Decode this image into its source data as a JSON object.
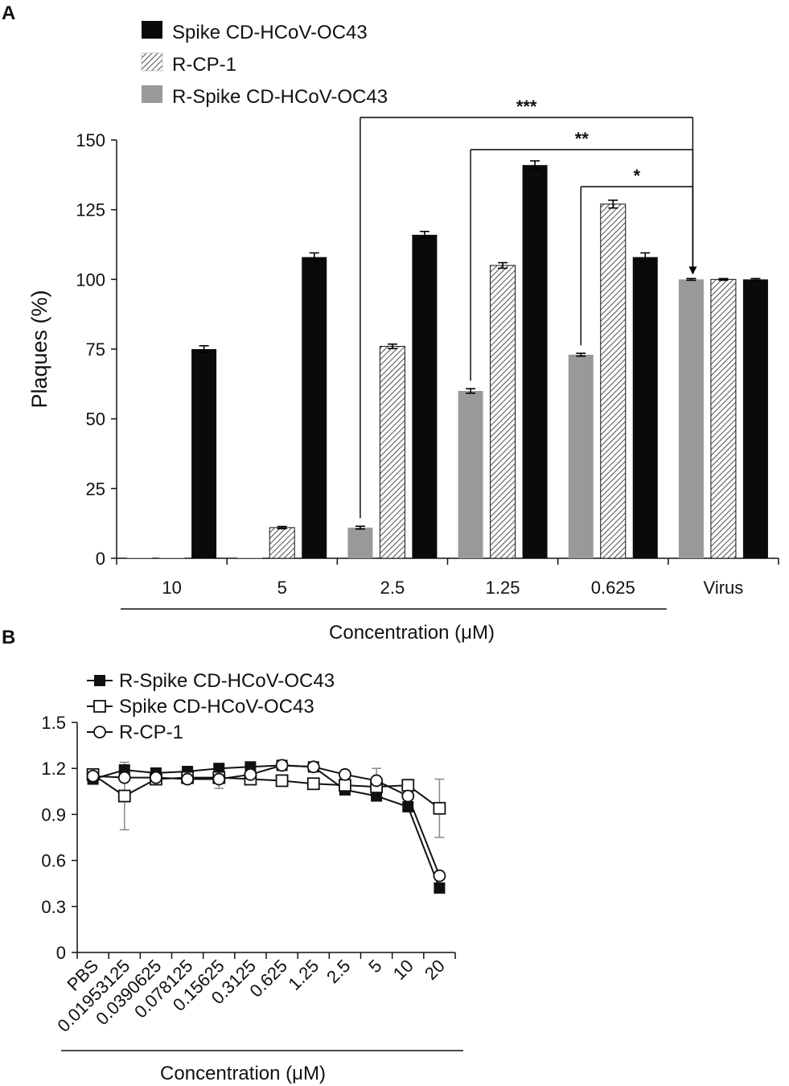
{
  "figure": {
    "panel_a_letter": "A",
    "panel_b_letter": "B"
  },
  "chart_data": [
    {
      "type": "bar",
      "panel": "A",
      "ylabel": "Plaques (%)",
      "xlabel": "Concentration (μM)",
      "ylim": [
        0,
        150
      ],
      "yticks": [
        0,
        25,
        50,
        75,
        100,
        125,
        150
      ],
      "categories": [
        "10",
        "5",
        "2.5",
        "1.25",
        "0.625",
        "Virus"
      ],
      "series": [
        {
          "name": "R-Spike CD-HCoV-OC43",
          "style": "gray",
          "values": [
            0,
            0,
            11,
            60,
            73,
            100
          ],
          "errors": [
            0,
            0,
            0.5,
            0.8,
            0.5,
            0.3
          ]
        },
        {
          "name": "R-CP-1",
          "style": "hatched",
          "values": [
            0,
            11,
            76,
            105,
            127,
            100
          ],
          "errors": [
            0,
            0.4,
            0.8,
            1.0,
            1.4,
            0.3
          ]
        },
        {
          "name": "Spike CD-HCoV-OC43",
          "style": "black",
          "values": [
            75,
            108,
            116,
            141,
            108,
            100
          ],
          "errors": [
            1.2,
            1.5,
            1.2,
            1.5,
            1.5,
            0.3
          ]
        }
      ],
      "legend": [
        "Spike CD-HCoV-OC43",
        "R-CP-1",
        "R-Spike CD-HCoV-OC43"
      ],
      "significance": [
        {
          "from": "2.5",
          "to": "Virus",
          "label": "***"
        },
        {
          "from": "1.25",
          "to": "Virus",
          "label": "**"
        },
        {
          "from": "0.625",
          "to": "Virus",
          "label": "*"
        }
      ]
    },
    {
      "type": "line",
      "panel": "B",
      "xlabel": "Concentration (μM)",
      "ylim": [
        0,
        1.5
      ],
      "yticks": [
        "0",
        "0.3",
        "0.6",
        "0.9",
        "1.2",
        "1.5"
      ],
      "ytick_values": [
        0,
        0.3,
        0.6,
        0.9,
        1.2,
        1.5
      ],
      "x": [
        "PBS",
        "0.01953125",
        "0.0390625",
        "0.078125",
        "0.15625",
        "0.3125",
        "0.625",
        "1.25",
        "2.5",
        "5",
        "10",
        "20"
      ],
      "series": [
        {
          "name": "R-Spike CD-HCoV-OC43",
          "marker": "filled-square",
          "values": [
            1.13,
            1.19,
            1.17,
            1.18,
            1.2,
            1.21,
            1.22,
            1.21,
            1.06,
            1.02,
            0.95,
            0.42
          ],
          "errors": [
            0.02,
            0.02,
            0.02,
            0.02,
            0.02,
            0.02,
            0.02,
            0.02,
            0.02,
            0.02,
            0.04,
            0.02
          ]
        },
        {
          "name": "Spike CD-HCoV-OC43",
          "marker": "open-square",
          "values": [
            1.16,
            1.02,
            1.13,
            1.14,
            1.14,
            1.13,
            1.12,
            1.1,
            1.09,
            1.08,
            1.09,
            0.94
          ],
          "errors": [
            0.03,
            0.22,
            0.02,
            0.02,
            0.02,
            0.02,
            0.02,
            0.02,
            0.02,
            0.02,
            0.02,
            0.19
          ]
        },
        {
          "name": "R-CP-1",
          "marker": "open-circle",
          "values": [
            1.15,
            1.14,
            1.14,
            1.13,
            1.13,
            1.16,
            1.22,
            1.21,
            1.16,
            1.12,
            1.02,
            0.5
          ],
          "errors": [
            0.02,
            0.02,
            0.02,
            0.02,
            0.06,
            0.02,
            0.02,
            0.02,
            0.02,
            0.08,
            0.02,
            0.02
          ]
        }
      ]
    }
  ],
  "colors": {
    "black_bar": "#0a0a0a",
    "gray_bar": "#999999",
    "hatch_line": "#222222",
    "axis": "#111111",
    "error_gray": "#888888"
  }
}
